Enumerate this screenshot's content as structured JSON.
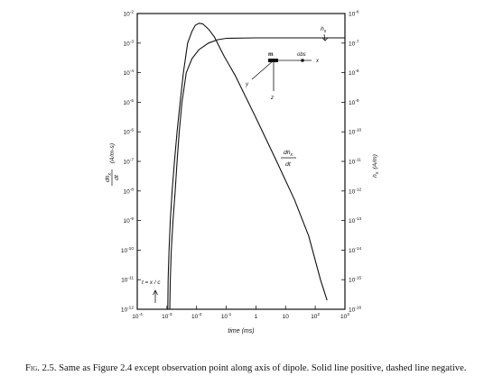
{
  "chart_data": {
    "type": "line",
    "title": "",
    "x_axis": {
      "label": "time (ms)",
      "scale": "log",
      "range": [
        0.0001,
        1000
      ],
      "ticks": [
        {
          "v": 0.0001,
          "b": "10",
          "e": "-4"
        },
        {
          "v": 0.001,
          "b": "10",
          "e": "-3"
        },
        {
          "v": 0.01,
          "b": "10",
          "e": "-2"
        },
        {
          "v": 0.1,
          "b": "10",
          "e": "-1"
        },
        {
          "v": 1,
          "b": "1",
          "e": ""
        },
        {
          "v": 10,
          "b": "10",
          "e": ""
        },
        {
          "v": 100,
          "b": "10",
          "e": "2"
        },
        {
          "v": 1000,
          "b": "10",
          "e": "3"
        }
      ]
    },
    "y_left": {
      "label_num": "dh",
      "label_sub": "x",
      "label_den": "dt",
      "label_unit": "(A/m-s)",
      "scale": "log",
      "range": [
        1e-12,
        0.01
      ],
      "ticks": [
        {
          "v": 0.01,
          "e": "-2"
        },
        {
          "v": 0.001,
          "e": "-3"
        },
        {
          "v": 0.0001,
          "e": "-4"
        },
        {
          "v": 1e-05,
          "e": "-5"
        },
        {
          "v": 1e-06,
          "e": "-6"
        },
        {
          "v": 1e-07,
          "e": "-7"
        },
        {
          "v": 1e-08,
          "e": "-8"
        },
        {
          "v": 1e-09,
          "e": "-9"
        },
        {
          "v": 1e-10,
          "e": "-10"
        },
        {
          "v": 1e-11,
          "e": "-11"
        },
        {
          "v": 1e-12,
          "e": "-12"
        }
      ]
    },
    "y_right": {
      "label_main": "h",
      "label_sub": "x",
      "label_unit": "(A/m)",
      "scale": "log",
      "range": [
        1e-16,
        1e-06
      ],
      "ticks": [
        {
          "v": 1e-06,
          "e": "-6"
        },
        {
          "v": 1e-07,
          "e": "-7"
        },
        {
          "v": 1e-08,
          "e": "-8"
        },
        {
          "v": 1e-09,
          "e": "-9"
        },
        {
          "v": 1e-10,
          "e": "-10"
        },
        {
          "v": 1e-11,
          "e": "-11"
        },
        {
          "v": 1e-12,
          "e": "-12"
        },
        {
          "v": 1e-13,
          "e": "-13"
        },
        {
          "v": 1e-14,
          "e": "-14"
        },
        {
          "v": 1e-15,
          "e": "-15"
        },
        {
          "v": 1e-16,
          "e": "-16"
        }
      ]
    },
    "series": [
      {
        "axis": "left",
        "style": "solid",
        "points": [
          [
            0.00107,
            1e-12
          ],
          [
            0.0011,
            1e-11
          ],
          [
            0.00118,
            1e-10
          ],
          [
            0.0013,
            1e-09
          ],
          [
            0.0015,
            1e-08
          ],
          [
            0.0018,
            1e-07
          ],
          [
            0.0022,
            1e-06
          ],
          [
            0.0028,
            1e-05
          ],
          [
            0.0036,
            0.0001
          ],
          [
            0.005,
            0.001
          ],
          [
            0.007,
            0.0025
          ],
          [
            0.009,
            0.004
          ],
          [
            0.012,
            0.0047
          ],
          [
            0.016,
            0.0045
          ],
          [
            0.025,
            0.003
          ],
          [
            0.04,
            0.0016
          ],
          [
            0.08,
            0.0004
          ],
          [
            0.2,
            8e-05
          ],
          [
            1,
            3e-06
          ],
          [
            5,
            1e-07
          ],
          [
            20,
            5e-09
          ],
          [
            60,
            3e-10
          ],
          [
            150,
            1e-11
          ],
          [
            250,
            2e-12
          ]
        ]
      },
      {
        "axis": "right",
        "style": "solid",
        "points": [
          [
            0.00125,
            1e-16
          ],
          [
            0.0013,
            1e-15
          ],
          [
            0.0014,
            1e-14
          ],
          [
            0.0016,
            1e-13
          ],
          [
            0.0019,
            1e-12
          ],
          [
            0.0022,
            1e-11
          ],
          [
            0.0026,
            1e-10
          ],
          [
            0.0032,
            1e-09
          ],
          [
            0.0045,
            1e-08
          ],
          [
            0.007,
            3e-08
          ],
          [
            0.012,
            6e-08
          ],
          [
            0.025,
            1e-07
          ],
          [
            0.05,
            1.3e-07
          ],
          [
            0.1,
            1.45e-07
          ],
          [
            1,
            1.5e-07
          ],
          [
            1000,
            1.5e-07
          ]
        ]
      }
    ],
    "annotations": {
      "curve_left_num": "dh",
      "curve_left_sub": "x",
      "curve_left_den": "dt",
      "curve_right_main": "h",
      "curve_right_sub": "x",
      "time_marker": "t = x / c",
      "inset": {
        "source_label": "m",
        "obs_label": "obs",
        "x_label": "x",
        "y_label": "y",
        "z_label": "z"
      }
    }
  },
  "caption": {
    "lead": "Fig. 2.5.",
    "text": "Same as Figure 2.4 except observation point along axis of dipole. Solid line positive, dashed line negative."
  }
}
